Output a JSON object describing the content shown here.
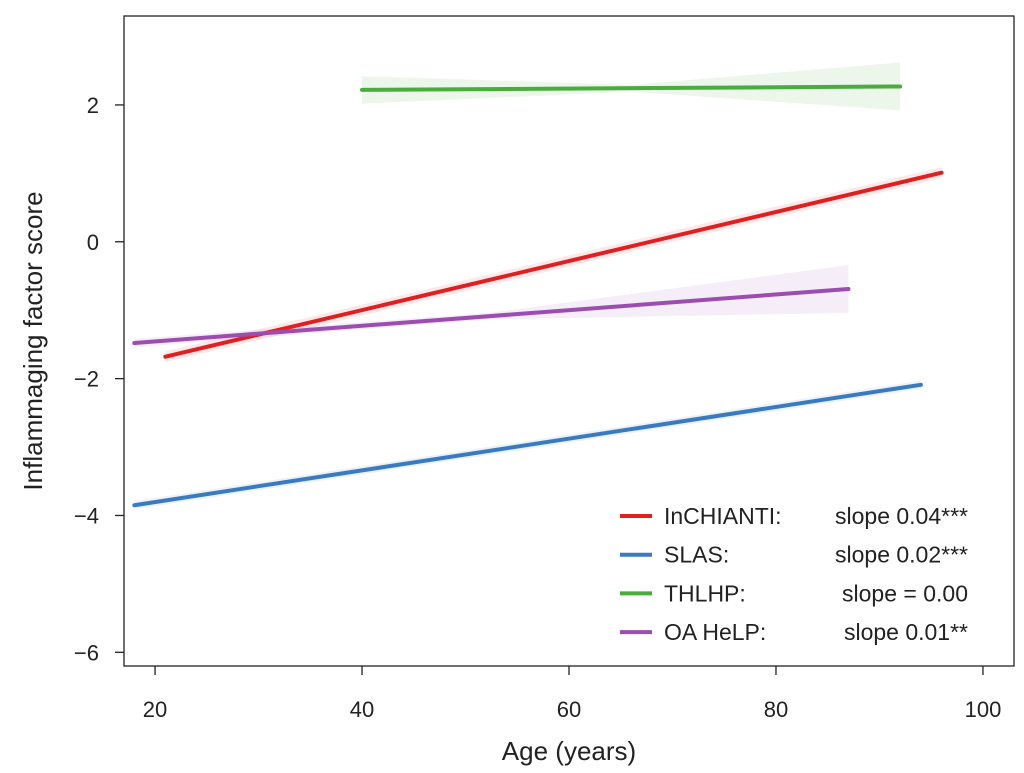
{
  "chart_data": {
    "type": "line",
    "xlabel": "Age (years)",
    "ylabel": "Inflammaging factor score",
    "xlim": [
      17,
      103
    ],
    "ylim": [
      -6.2,
      3.3
    ],
    "x_ticks": [
      20,
      40,
      60,
      80,
      100
    ],
    "x_tick_labels": [
      "20",
      "40",
      "60",
      "80",
      "100"
    ],
    "y_ticks": [
      2,
      0,
      -2,
      -4,
      -6
    ],
    "y_tick_labels": [
      "2",
      "0",
      "−2",
      "−4",
      "−6"
    ],
    "grid": false,
    "legend_position": "bottom-right",
    "series": [
      {
        "name": "InCHIANTI:",
        "slope_label": "slope 0.04***",
        "color": "#e02020",
        "x": [
          21,
          96
        ],
        "y": [
          -1.68,
          1.01
        ],
        "ci": 0.08
      },
      {
        "name": "SLAS:",
        "slope_label": "slope 0.02***",
        "color": "#3a7bbf",
        "x": [
          18,
          94
        ],
        "y": [
          -3.85,
          -2.09
        ],
        "ci": 0.06
      },
      {
        "name": "THLHP:",
        "slope_label": "slope = 0.00",
        "color": "#4aab3e",
        "x": [
          40,
          92
        ],
        "y": [
          2.22,
          2.27
        ],
        "ci_start": 0.2,
        "ci_mid": 0.05,
        "ci_end": 0.35
      },
      {
        "name": "OA HeLP:",
        "slope_label": "slope 0.01**",
        "color": "#9b4db0",
        "x": [
          18,
          87
        ],
        "y": [
          -1.48,
          -0.69
        ],
        "ci_start": 0.06,
        "ci_mid": 0.05,
        "ci_end": 0.35
      }
    ]
  }
}
